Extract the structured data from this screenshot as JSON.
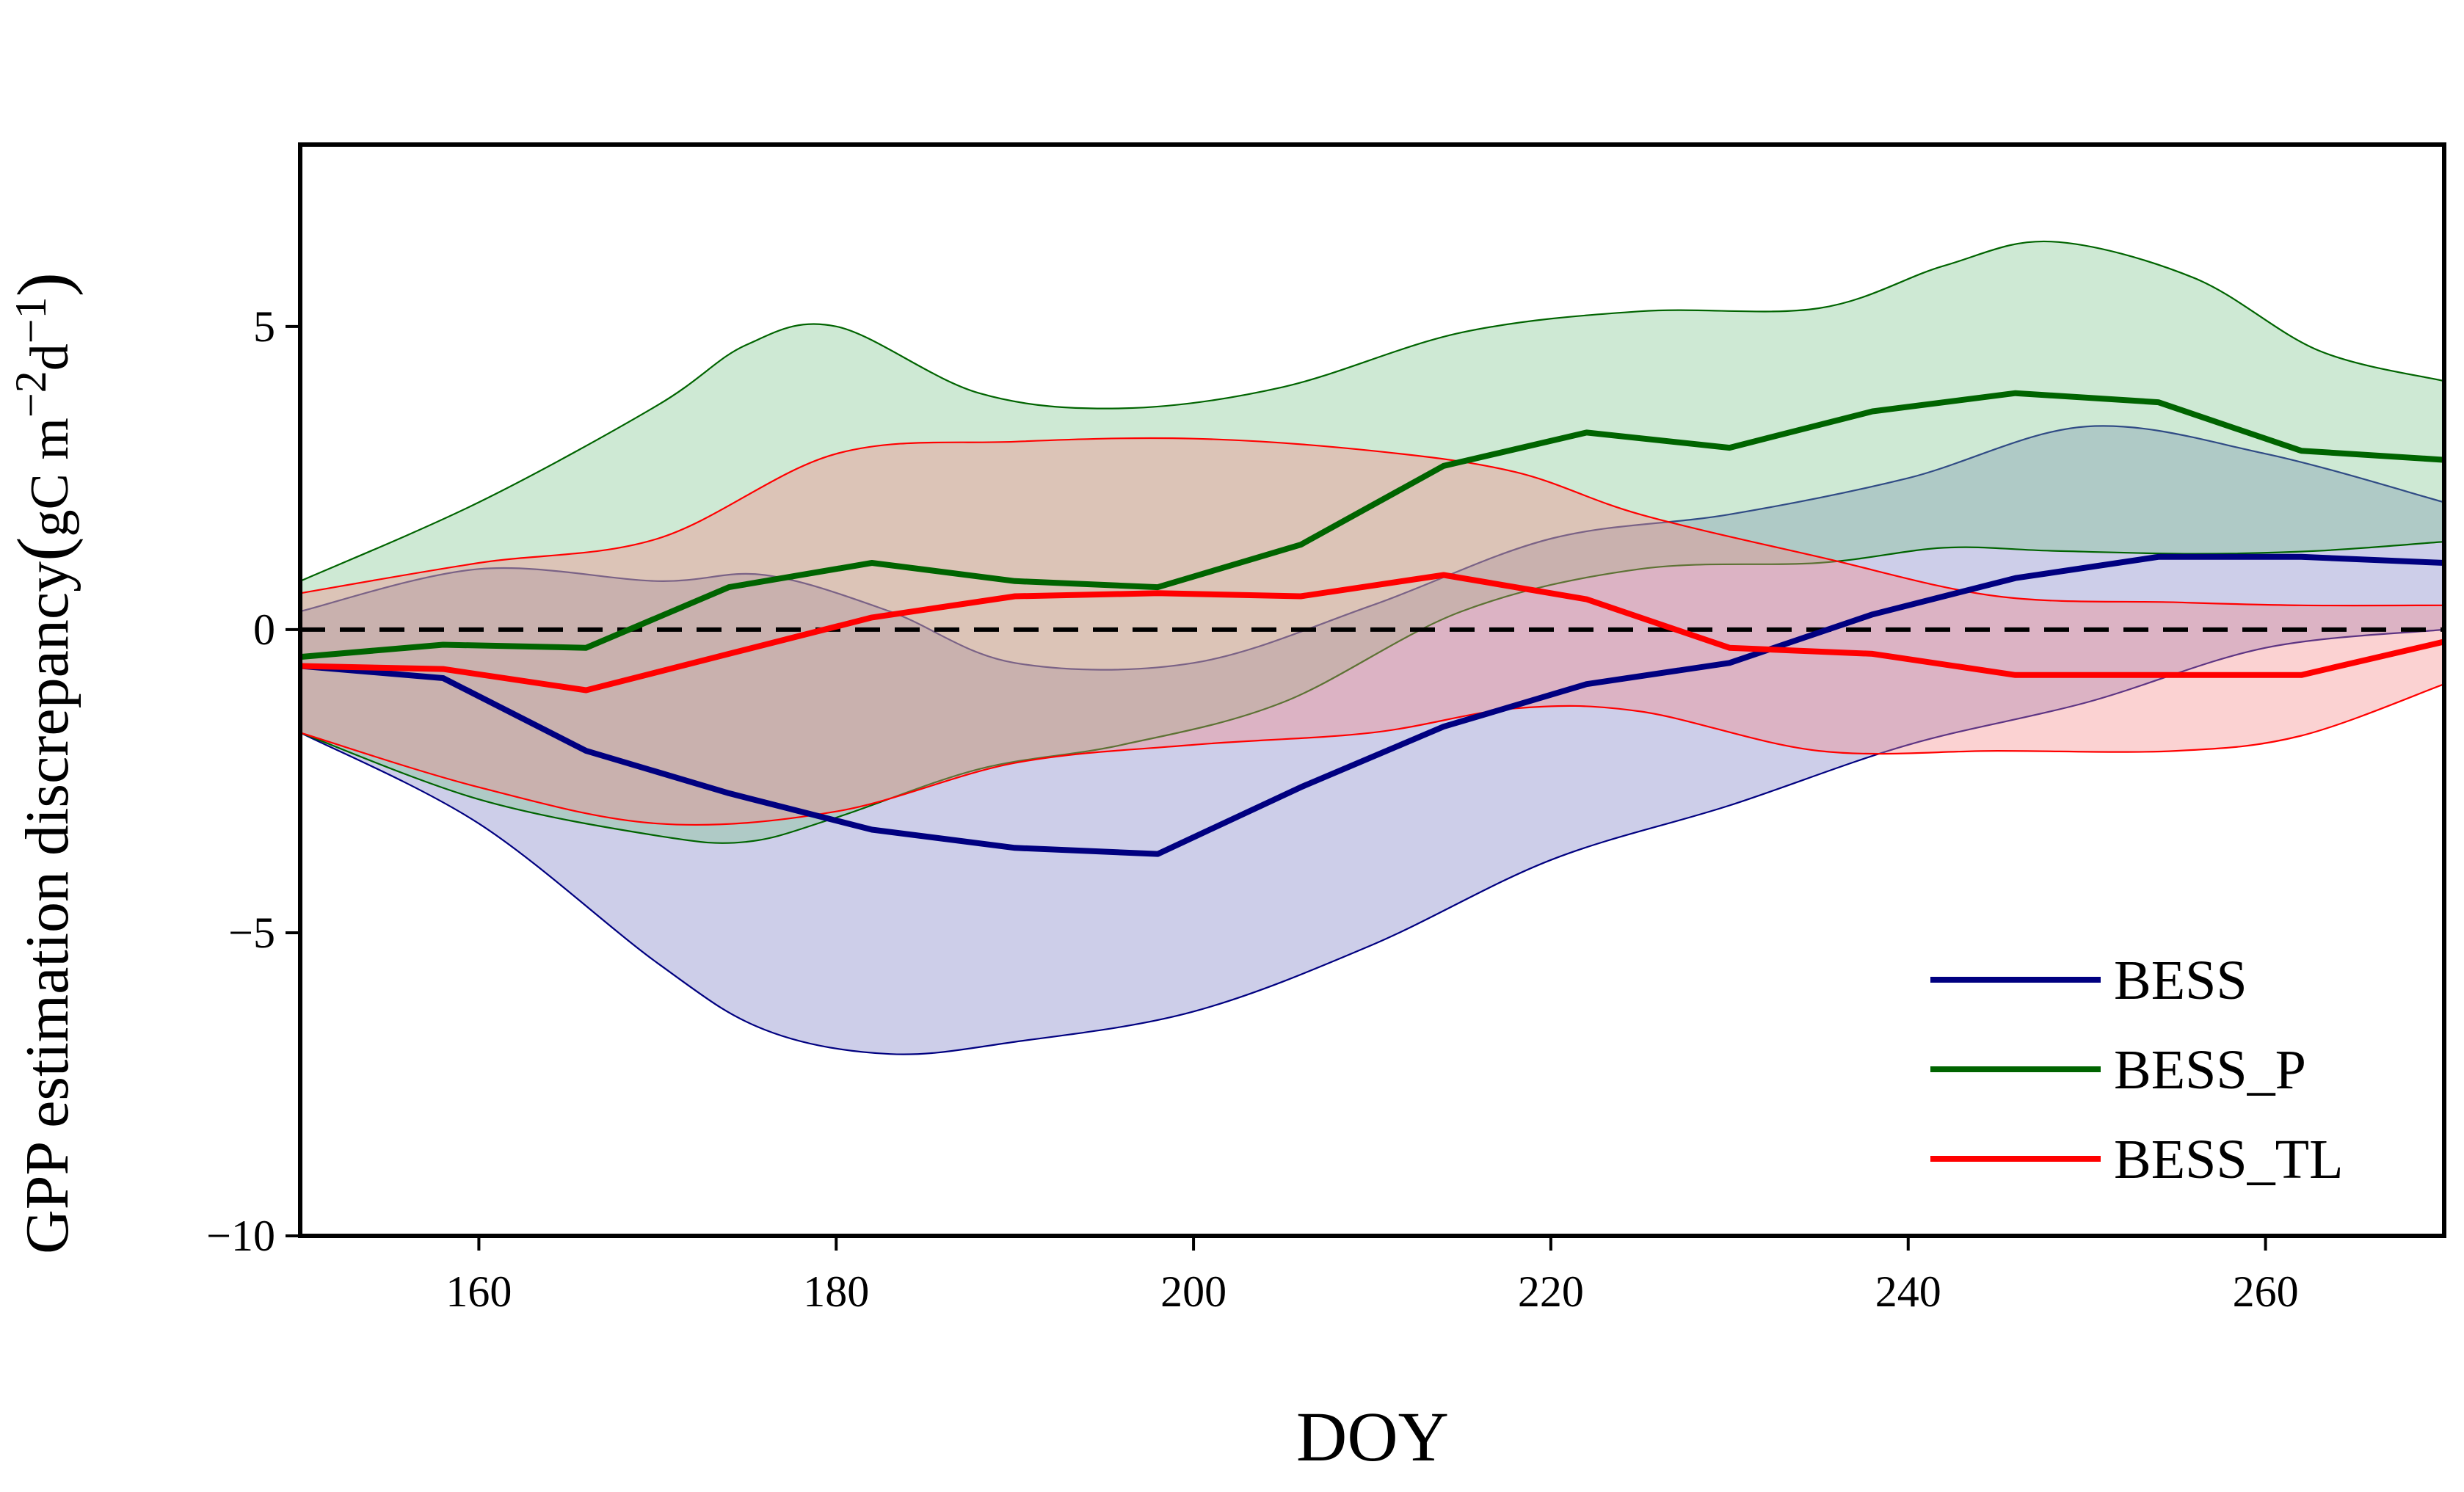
{
  "chart_data": {
    "type": "line",
    "xlabel": "DOY",
    "ylabel": {
      "main": "GPP estimation discrepancy",
      "open_paren": "(",
      "unit_prefix": "gC m",
      "sup1": "−2",
      "unit_mid": "d",
      "sup2": "−1",
      "close_paren": ")"
    },
    "xlim": [
      150,
      270
    ],
    "ylim": [
      -10,
      8
    ],
    "xticks": [
      160,
      180,
      200,
      220,
      240,
      260
    ],
    "yticks": [
      {
        "value": 5,
        "label": "5"
      },
      {
        "value": 0,
        "label": "0"
      },
      {
        "value": -5,
        "label": "−5"
      },
      {
        "value": -10,
        "label": "−10"
      }
    ],
    "zero_line": {
      "value": 0,
      "style": "dashed"
    },
    "legend_position": "bottom-right",
    "series": [
      {
        "name": "BESS",
        "color": "#000080",
        "band_color": "#7b7fc4",
        "x": [
          150,
          158,
          166,
          174,
          182,
          190,
          198,
          206,
          214,
          222,
          230,
          238,
          246,
          254,
          262,
          270
        ],
        "y": [
          -0.6,
          -0.8,
          -2.0,
          -2.7,
          -3.3,
          -3.6,
          -3.7,
          -2.6,
          -1.6,
          -0.9,
          -0.55,
          0.25,
          0.85,
          1.2,
          1.2,
          1.1
        ],
        "band_x": [
          150,
          160,
          170,
          176,
          183,
          190,
          200,
          210,
          220,
          230,
          240,
          250,
          260,
          270
        ],
        "band_upper": [
          0.3,
          1.0,
          0.8,
          0.9,
          0.3,
          -0.55,
          -0.55,
          0.4,
          1.5,
          1.9,
          2.5,
          3.35,
          2.9,
          2.1
        ],
        "band_lower": [
          -1.7,
          -3.2,
          -5.5,
          -6.6,
          -7.0,
          -6.8,
          -6.3,
          -5.2,
          -3.8,
          -2.9,
          -1.9,
          -1.2,
          -0.3,
          0.0
        ]
      },
      {
        "name": "BESS_P",
        "color": "#006400",
        "band_color": "#7dc48f",
        "x": [
          150,
          158,
          166,
          174,
          182,
          190,
          198,
          206,
          214,
          222,
          230,
          238,
          246,
          254,
          262,
          270
        ],
        "y": [
          -0.45,
          -0.25,
          -0.3,
          0.7,
          1.1,
          0.8,
          0.7,
          1.4,
          2.7,
          3.25,
          3.0,
          3.6,
          3.9,
          3.75,
          2.95,
          2.8
        ],
        "band_x": [
          150,
          160,
          170,
          175,
          180,
          188,
          196,
          205,
          215,
          225,
          235,
          242,
          248,
          256,
          263,
          270
        ],
        "band_upper": [
          0.8,
          2.1,
          3.7,
          4.7,
          5.0,
          3.9,
          3.65,
          4.0,
          4.9,
          5.25,
          5.3,
          6.0,
          6.4,
          5.8,
          4.6,
          4.1
        ],
        "band_lower": [
          -1.7,
          -2.8,
          -3.4,
          -3.5,
          -3.1,
          -2.3,
          -1.9,
          -1.2,
          0.3,
          1.0,
          1.1,
          1.35,
          1.3,
          1.25,
          1.3,
          1.45
        ]
      },
      {
        "name": "BESS_TL",
        "color": "#ff0000",
        "band_color": "#f58a8a",
        "x": [
          150,
          158,
          166,
          174,
          182,
          190,
          198,
          206,
          214,
          222,
          230,
          238,
          246,
          254,
          262,
          270
        ],
        "y": [
          -0.6,
          -0.65,
          -1.0,
          -0.4,
          0.2,
          0.55,
          0.6,
          0.55,
          0.9,
          0.5,
          -0.3,
          -0.4,
          -0.75,
          -0.75,
          -0.75,
          -0.2
        ],
        "band_x": [
          150,
          160,
          170,
          180,
          190,
          200,
          210,
          218,
          225,
          235,
          245,
          255,
          262,
          270
        ],
        "band_upper": [
          0.6,
          1.1,
          1.5,
          2.9,
          3.1,
          3.15,
          2.95,
          2.6,
          1.9,
          1.2,
          0.55,
          0.45,
          0.4,
          0.4
        ],
        "band_lower": [
          -1.7,
          -2.6,
          -3.2,
          -3.0,
          -2.2,
          -1.9,
          -1.7,
          -1.3,
          -1.35,
          -2.0,
          -2.0,
          -2.0,
          -1.75,
          -0.9
        ]
      }
    ]
  }
}
